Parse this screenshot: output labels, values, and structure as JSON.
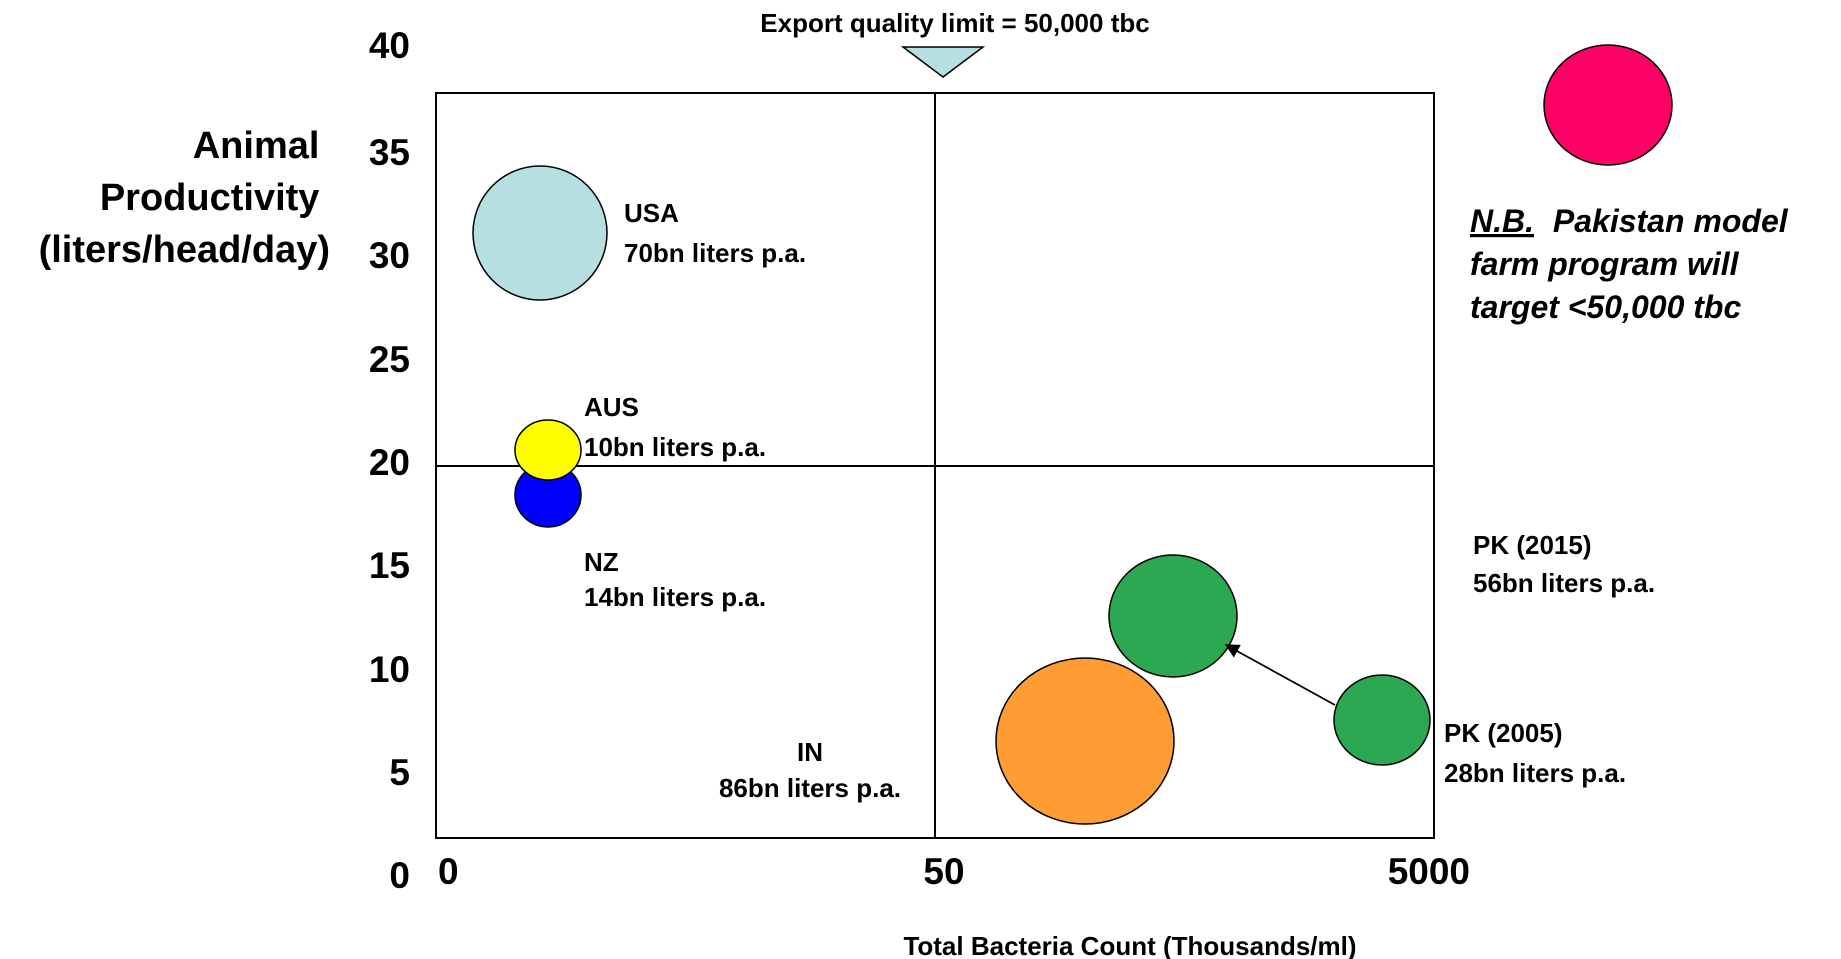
{
  "chart_data": {
    "type": "bubble",
    "ylabel": [
      "Animal",
      "Productivity",
      "(liters/head/day)"
    ],
    "xlabel": "Total Bacteria Count (Thousands/ml)",
    "ylim": [
      0,
      40
    ],
    "yticks": [
      "0",
      "5",
      "10",
      "15",
      "20",
      "25",
      "30",
      "35",
      "40"
    ],
    "xticks": [
      "0",
      "50",
      "5000"
    ],
    "x_scale": "log (segments 0–50 and 50–5000 of equal width)",
    "reference_lines": {
      "vertical_x": 50,
      "horizontal_y": 20
    },
    "export_marker": {
      "label": "Export quality limit = 50,000 tbc",
      "x": 50,
      "color": "#b7dfe2"
    },
    "bubbles": [
      {
        "name": "USA",
        "volume": "70bn liters p.a.",
        "x": 5,
        "y": 30.8,
        "color": "#b7dfe2"
      },
      {
        "name": "AUS",
        "volume": "10bn liters p.a.",
        "x": 5,
        "y": 20.5,
        "color": "#ffff00"
      },
      {
        "name": "NZ",
        "volume": "14bn liters p.a.",
        "x": 5,
        "y": 18.3,
        "color": "#0000ff"
      },
      {
        "name": "IN",
        "volume": "86bn liters p.a.",
        "x": 400,
        "y": 6.1,
        "color": "#ff9c33"
      },
      {
        "name": "PK (2015)",
        "volume": "56bn liters p.a.",
        "x": 700,
        "y": 12.4,
        "color": "#2ca853"
      },
      {
        "name": "PK (2005)",
        "volume": "28bn liters p.a.",
        "x": 3500,
        "y": 7.3,
        "color": "#2ca853"
      }
    ],
    "arrow": {
      "from": "PK (2005)",
      "to": "PK (2015)"
    },
    "note": {
      "prefix": "N.B.",
      "lines": [
        "Pakistan model",
        "farm program will",
        "target <50,000 tbc"
      ],
      "color": "#ff0066"
    }
  }
}
